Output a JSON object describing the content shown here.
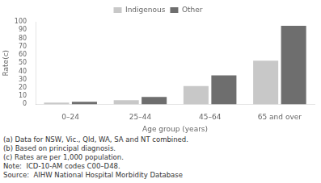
{
  "chart_data": {
    "type": "bar",
    "categories": [
      "0–24",
      "25–44",
      "45–64",
      "65 and over"
    ],
    "series": [
      {
        "name": "Indigenous",
        "color": "#c8c8c8",
        "values": [
          2,
          5,
          22,
          53
        ]
      },
      {
        "name": "Other",
        "color": "#6e6e6e",
        "values": [
          3,
          9,
          35,
          95
        ]
      }
    ],
    "ylim": [
      0,
      100
    ],
    "yticks": [
      0,
      10,
      20,
      30,
      40,
      50,
      60,
      70,
      80,
      90,
      100
    ],
    "xlabel": "Age group (years)",
    "ylabel": "Rate(c)",
    "legend": "top",
    "grid": false,
    "annotations": [
      "(a) Data for NSW, Vic., Qld, WA, SA and NT combined.",
      "(b) Based on principal diagnosis.",
      "(c) Rates are per 1,000 population.",
      "Note:  ICD-10-AM codes C00–D48.",
      "Source:  AIHW National Hospital Morbidity Database"
    ]
  }
}
